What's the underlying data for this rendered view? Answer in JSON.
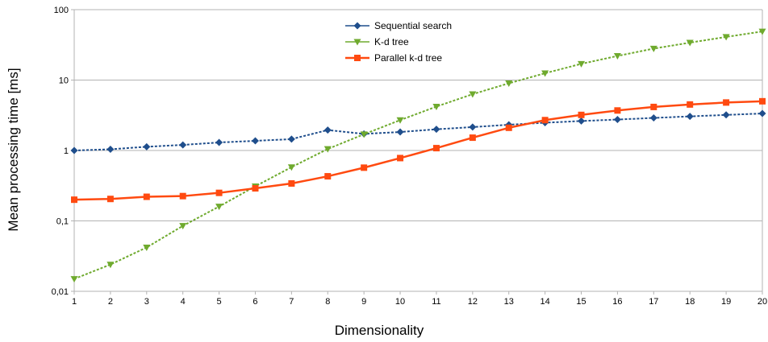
{
  "chart_data": {
    "type": "line",
    "title": "",
    "xlabel": "Dimensionality",
    "ylabel": "Mean processing time [ms]",
    "x": [
      1,
      2,
      3,
      4,
      5,
      6,
      7,
      8,
      9,
      10,
      11,
      12,
      13,
      14,
      15,
      16,
      17,
      18,
      19,
      20
    ],
    "x_tick_labels": [
      "1",
      "2",
      "3",
      "4",
      "5",
      "6",
      "7",
      "8",
      "9",
      "10",
      "11",
      "12",
      "13",
      "14",
      "15",
      "16",
      "17",
      "18",
      "19",
      "20"
    ],
    "y_scale": "log",
    "ylim": [
      0.01,
      100
    ],
    "y_tick_values": [
      0.01,
      0.1,
      1,
      10,
      100
    ],
    "y_tick_labels": [
      "0,01",
      "0,1",
      "1",
      "10",
      "100"
    ],
    "grid": "horizontal",
    "legend_position": "top-center",
    "series": [
      {
        "name": "Sequential search",
        "color": "#1f4e8c",
        "marker": "diamond",
        "line_style": "dotted",
        "values": [
          1.0,
          1.04,
          1.13,
          1.2,
          1.3,
          1.37,
          1.45,
          1.95,
          1.72,
          1.83,
          2.0,
          2.15,
          2.32,
          2.48,
          2.62,
          2.75,
          2.9,
          3.05,
          3.2,
          3.35
        ]
      },
      {
        "name": "K-d tree",
        "color": "#6faa2e",
        "marker": "triangle-down",
        "line_style": "dotted",
        "values": [
          0.015,
          0.024,
          0.042,
          0.085,
          0.16,
          0.31,
          0.58,
          1.05,
          1.7,
          2.7,
          4.2,
          6.3,
          9.0,
          12.5,
          17.0,
          22.0,
          28.0,
          34.0,
          41.0,
          49.0
        ]
      },
      {
        "name": "Parallel k-d tree",
        "color": "#ff4a10",
        "marker": "square",
        "line_style": "solid",
        "values": [
          0.2,
          0.205,
          0.22,
          0.225,
          0.25,
          0.29,
          0.34,
          0.43,
          0.57,
          0.78,
          1.08,
          1.52,
          2.1,
          2.7,
          3.2,
          3.7,
          4.15,
          4.5,
          4.8,
          5.0
        ]
      }
    ]
  }
}
